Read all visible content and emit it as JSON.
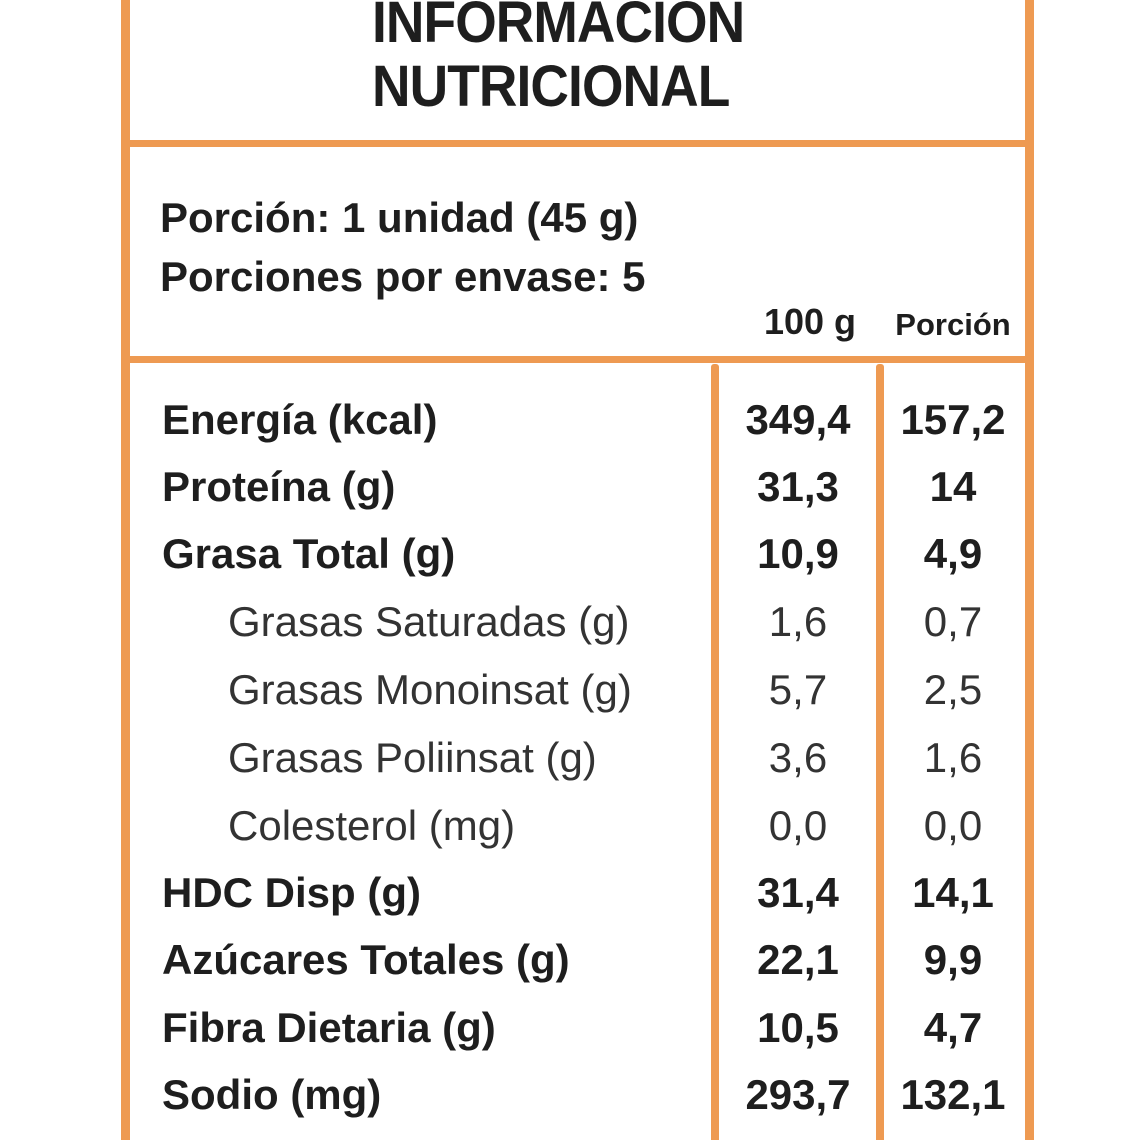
{
  "header": {
    "title_line1": "INFORMACION",
    "title_line2": "NUTRICIONAL"
  },
  "serving": {
    "portion": "Porción: 1 unidad (45 g)",
    "portions_per_package": "Porciones por envase: 5"
  },
  "columns": {
    "per100": "100 g",
    "per_portion": "Porción"
  },
  "nutrients": [
    {
      "label": "Energía (kcal)",
      "per100": "349,4",
      "portion": "157,2"
    },
    {
      "label": "Proteína (g)",
      "per100": "31,3",
      "portion": "14"
    },
    {
      "label": "Grasa Total (g)",
      "per100": "10,9",
      "portion": "4,9"
    },
    {
      "label": "Grasas Saturadas (g)",
      "per100": "1,6",
      "portion": "0,7"
    },
    {
      "label": "Grasas Monoinsat (g)",
      "per100": "5,7",
      "portion": "2,5"
    },
    {
      "label": "Grasas Poliinsat (g)",
      "per100": "3,6",
      "portion": "1,6"
    },
    {
      "label": "Colesterol (mg)",
      "per100": "0,0",
      "portion": "0,0"
    },
    {
      "label": "HDC Disp (g)",
      "per100": "31,4",
      "portion": "14,1"
    },
    {
      "label": "Azúcares Totales (g)",
      "per100": "22,1",
      "portion": "9,9"
    },
    {
      "label": "Fibra Dietaria (g)",
      "per100": "10,5",
      "portion": "4,7"
    },
    {
      "label": "Sodio (mg)",
      "per100": "293,7",
      "portion": "132,1"
    }
  ],
  "colors": {
    "border": "#ee9a52",
    "text": "#1e1e1e"
  }
}
